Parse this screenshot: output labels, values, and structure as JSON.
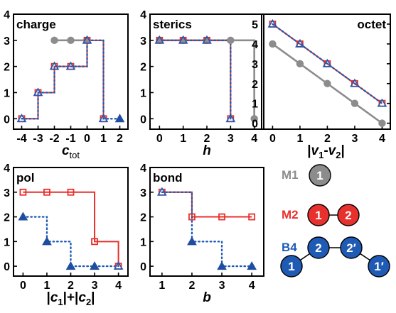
{
  "colors": {
    "M1": "#8c8c8c",
    "M2": "#e8302c",
    "B4": "#1f5bb4",
    "marker_dark": "#1f4ea0"
  },
  "chart_data": [
    {
      "type": "line",
      "title": "charge",
      "xlabel": "c",
      "xlabel_sub": "tot",
      "x_ticks": [
        -4,
        -3,
        -2,
        -1,
        0,
        1,
        2
      ],
      "y_ticks": [
        0,
        1,
        2,
        3,
        4
      ],
      "xlim": [
        -4.5,
        2.5
      ],
      "ylim": [
        -0.4,
        4
      ],
      "series": [
        {
          "name": "M1",
          "x": [
            -2,
            -1,
            0
          ],
          "y": [
            3,
            3,
            3
          ]
        },
        {
          "name": "M2",
          "x": [
            -4,
            -3,
            -2,
            -1,
            0,
            1
          ],
          "y": [
            0,
            1,
            2,
            2,
            3,
            0
          ]
        },
        {
          "name": "B4",
          "x": [
            -4,
            -3,
            -2,
            -1,
            0,
            1,
            2
          ],
          "y": [
            0,
            1,
            2,
            2,
            3,
            0,
            0
          ]
        }
      ]
    },
    {
      "type": "line",
      "title": "sterics",
      "xlabel": "h",
      "x_ticks": [
        0,
        1,
        2,
        3,
        4
      ],
      "y_ticks": [
        0,
        1,
        2,
        3,
        4
      ],
      "xlim": [
        -0.4,
        4.4
      ],
      "ylim": [
        -0.4,
        4
      ],
      "series": [
        {
          "name": "M1",
          "x": [
            0,
            1,
            2,
            3,
            4
          ],
          "y": [
            3,
            3,
            3,
            3,
            0
          ]
        },
        {
          "name": "M2",
          "x": [
            0,
            1,
            2,
            3
          ],
          "y": [
            3,
            3,
            3,
            0
          ]
        },
        {
          "name": "B4",
          "x": [
            0,
            1,
            2,
            3
          ],
          "y": [
            3,
            3,
            3,
            0
          ]
        }
      ]
    },
    {
      "type": "line",
      "title": "octet",
      "xlabel": "|v1-v2|",
      "x_ticks": [
        0,
        1,
        2,
        3,
        4
      ],
      "y_ticks": [
        0,
        1,
        2,
        3,
        4,
        5
      ],
      "xlim": [
        -0.4,
        4.3
      ],
      "ylim": [
        -0.3,
        5.5
      ],
      "series": [
        {
          "name": "M1",
          "x": [
            0,
            1,
            2,
            3,
            4
          ],
          "y": [
            4,
            3,
            2,
            1,
            0
          ]
        },
        {
          "name": "M2",
          "x": [
            0,
            1,
            2,
            3,
            4
          ],
          "y": [
            5,
            4,
            3,
            2,
            1
          ]
        },
        {
          "name": "B4",
          "x": [
            0,
            1,
            2,
            3,
            4
          ],
          "y": [
            5,
            4,
            3,
            2,
            1
          ]
        }
      ]
    },
    {
      "type": "line",
      "title": "pol",
      "xlabel": "|c1|+|c2|",
      "x_ticks": [
        0,
        1,
        2,
        3,
        4
      ],
      "y_ticks": [
        0,
        1,
        2,
        3,
        4
      ],
      "xlim": [
        -0.4,
        4.4
      ],
      "ylim": [
        -0.4,
        4
      ],
      "series": [
        {
          "name": "M2",
          "x": [
            0,
            1,
            2,
            3,
            4
          ],
          "y": [
            3,
            3,
            3,
            1,
            0
          ]
        },
        {
          "name": "B4",
          "x": [
            0,
            1,
            2,
            3,
            4
          ],
          "y": [
            2,
            1,
            0,
            0,
            0
          ]
        }
      ]
    },
    {
      "type": "line",
      "title": "bond",
      "xlabel": "b",
      "x_ticks": [
        1,
        2,
        3,
        4
      ],
      "y_ticks": [
        0,
        1,
        2,
        3,
        4
      ],
      "xlim": [
        0.6,
        4.4
      ],
      "ylim": [
        -0.4,
        4
      ],
      "series": [
        {
          "name": "M2",
          "x": [
            1,
            2,
            3,
            4
          ],
          "y": [
            3,
            2,
            2,
            2
          ]
        },
        {
          "name": "B4",
          "x": [
            1,
            2,
            3,
            4
          ],
          "y": [
            3,
            1,
            0,
            0
          ]
        }
      ]
    }
  ],
  "legend": {
    "items": [
      {
        "label": "M1",
        "nodes": [
          "1"
        ]
      },
      {
        "label": "M2",
        "nodes": [
          "1",
          "2"
        ]
      },
      {
        "label": "B4",
        "nodes": [
          "1",
          "2",
          "2′",
          "1′"
        ]
      }
    ]
  }
}
